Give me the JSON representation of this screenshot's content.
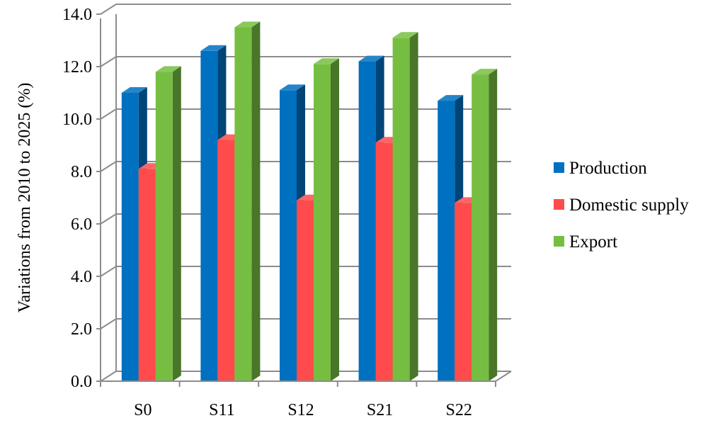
{
  "chart_data": {
    "type": "bar",
    "title": "",
    "xlabel": "",
    "ylabel": "Variations from 2010 to 2025 (%)",
    "categories": [
      "S0",
      "S11",
      "S12",
      "S21",
      "S22"
    ],
    "series": [
      {
        "name": "Production",
        "values": [
          11.0,
          12.6,
          11.1,
          12.2,
          10.7
        ],
        "color": "#0070C0"
      },
      {
        "name": "Domestic supply",
        "values": [
          8.1,
          9.2,
          6.9,
          9.1,
          6.8
        ],
        "color": "#FF4B4B"
      },
      {
        "name": "Export",
        "values": [
          11.8,
          13.5,
          12.1,
          13.1,
          11.7
        ],
        "color": "#76BE41"
      }
    ],
    "ylim": [
      0,
      14
    ],
    "yticks": [
      "0.0",
      "2.0",
      "4.0",
      "6.0",
      "8.0",
      "10.0",
      "12.0",
      "14.0"
    ],
    "grid": true,
    "legend_position": "right"
  }
}
